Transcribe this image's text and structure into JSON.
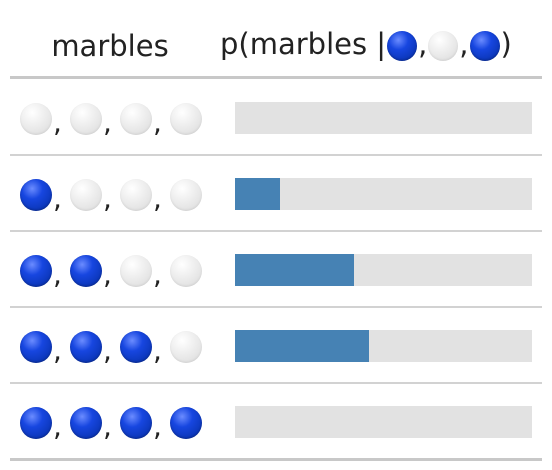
{
  "header": {
    "marbles_label": "marbles",
    "prob_prefix": "p(marbles |",
    "prob_suffix": ")",
    "observation": [
      "blue",
      "white",
      "blue"
    ]
  },
  "colors": {
    "blue": "#0b36b8",
    "white": "#e6e6e6",
    "bar": "#4682b4",
    "track": "#e2e2e2"
  },
  "chart_data": {
    "type": "bar",
    "orientation": "horizontal",
    "categories": [
      [
        "white",
        "white",
        "white",
        "white"
      ],
      [
        "blue",
        "white",
        "white",
        "white"
      ],
      [
        "blue",
        "blue",
        "white",
        "white"
      ],
      [
        "blue",
        "blue",
        "blue",
        "white"
      ],
      [
        "blue",
        "blue",
        "blue",
        "blue"
      ]
    ],
    "values": [
      0,
      0.15,
      0.4,
      0.45,
      0
    ],
    "xlim": [
      0,
      1
    ],
    "grid": false
  }
}
